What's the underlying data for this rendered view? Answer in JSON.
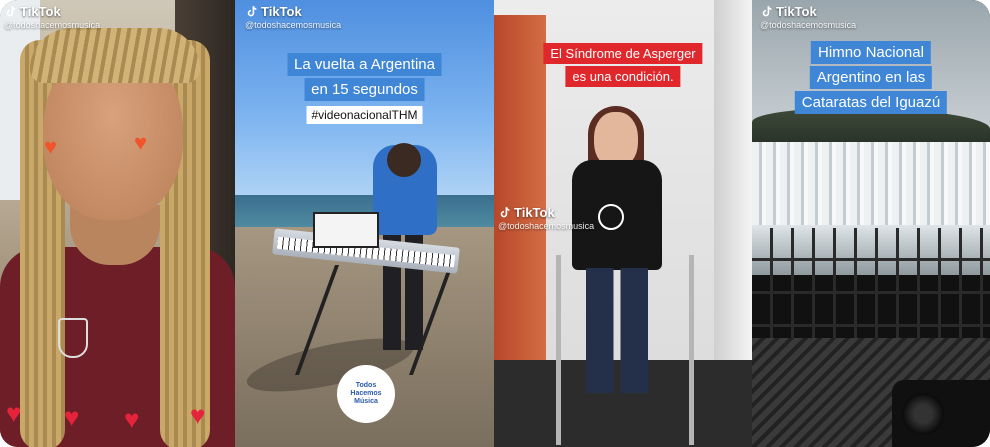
{
  "app_name": "TikTok",
  "videos": [
    {
      "watermark": {
        "brand": "TikTok",
        "handle": "@todoshacemosmusica"
      },
      "caption_lines": [],
      "badge_text": "",
      "scene": "man-with-dreadlocks-selfie"
    },
    {
      "watermark": {
        "brand": "TikTok",
        "handle": "@todoshacemosmusica"
      },
      "caption_lines": [
        "La vuelta a Argentina",
        "en 15 segundos"
      ],
      "badge_text": "#videonacionalTHM",
      "logo_text": [
        "Todos",
        "Hacemos",
        "Música"
      ],
      "scene": "girl-playing-keyboard-on-beach"
    },
    {
      "watermark": {
        "brand": "TikTok",
        "handle": "@todoshacemosmusica"
      },
      "caption_lines": [
        "El Síndrome de Asperger",
        "es una condición."
      ],
      "badge_text": "",
      "scene": "girl-with-walker-singing"
    },
    {
      "watermark": {
        "brand": "TikTok",
        "handle": "@todoshacemosmusica"
      },
      "caption_lines": [
        "Himno Nacional",
        "Argentino en las",
        "Cataratas del Iguazú"
      ],
      "badge_text": "",
      "scene": "iguazu-waterfalls"
    }
  ],
  "colors": {
    "caption_blue": "#3f86d6",
    "caption_red": "#e0282c"
  },
  "icons": {
    "watermark_icon": "tiktok-note-icon",
    "reaction_icon": "heart-sticker-icon"
  }
}
